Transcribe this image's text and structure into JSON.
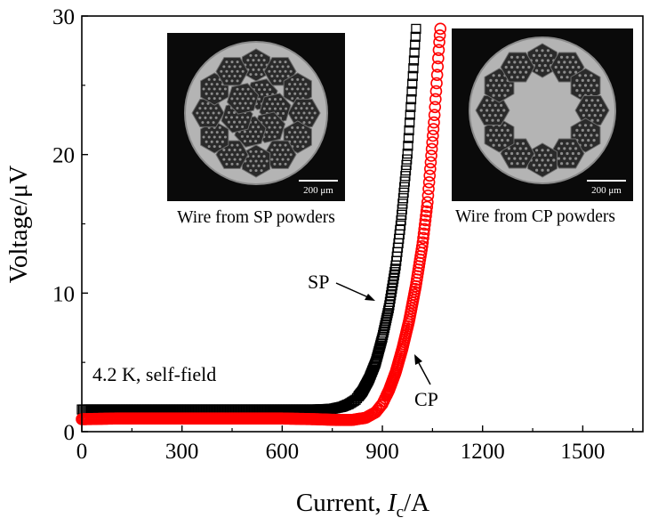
{
  "chart_data": {
    "type": "scatter",
    "xlabel_prefix": "Current, ",
    "xlabel_var": "I",
    "xlabel_sub": "c",
    "xlabel_unit": "/A",
    "ylabel": "Voltage/μV",
    "xlim": [
      0,
      1680
    ],
    "ylim": [
      0,
      30
    ],
    "xticks": [
      0,
      300,
      600,
      900,
      1200,
      1500
    ],
    "yticks": [
      0,
      10,
      20,
      30
    ],
    "condition_label": "4.2 K, self-field",
    "series": [
      {
        "name": "SP",
        "marker": "square",
        "color": "#000000",
        "points": [
          [
            0,
            1.6
          ],
          [
            100,
            1.6
          ],
          [
            200,
            1.6
          ],
          [
            300,
            1.6
          ],
          [
            400,
            1.6
          ],
          [
            500,
            1.6
          ],
          [
            600,
            1.6
          ],
          [
            700,
            1.6
          ],
          [
            750,
            1.65
          ],
          [
            780,
            1.8
          ],
          [
            800,
            2.0
          ],
          [
            820,
            2.3
          ],
          [
            840,
            2.9
          ],
          [
            860,
            3.8
          ],
          [
            880,
            5.0
          ],
          [
            900,
            6.8
          ],
          [
            920,
            9.0
          ],
          [
            940,
            12.0
          ],
          [
            955,
            15.0
          ],
          [
            965,
            17.5
          ],
          [
            975,
            20.0
          ],
          [
            985,
            23.5
          ],
          [
            995,
            27.0
          ],
          [
            1002,
            29.5
          ]
        ]
      },
      {
        "name": "CP",
        "marker": "circle",
        "color": "#ff0000",
        "points": [
          [
            0,
            0.9
          ],
          [
            100,
            0.95
          ],
          [
            200,
            0.95
          ],
          [
            300,
            0.95
          ],
          [
            400,
            0.95
          ],
          [
            500,
            0.95
          ],
          [
            600,
            0.95
          ],
          [
            700,
            0.9
          ],
          [
            760,
            0.85
          ],
          [
            810,
            0.85
          ],
          [
            850,
            1.0
          ],
          [
            880,
            1.4
          ],
          [
            900,
            2.0
          ],
          [
            920,
            3.0
          ],
          [
            940,
            4.3
          ],
          [
            960,
            6.0
          ],
          [
            980,
            8.0
          ],
          [
            1000,
            10.5
          ],
          [
            1020,
            13.5
          ],
          [
            1035,
            16.5
          ],
          [
            1045,
            19.5
          ],
          [
            1055,
            22.5
          ],
          [
            1062,
            25.0
          ],
          [
            1070,
            28.0
          ],
          [
            1075,
            29.5
          ]
        ]
      }
    ]
  },
  "insets": [
    {
      "caption": "Wire from SP powders",
      "scale_bar": "200 μm"
    },
    {
      "caption": "Wire from CP powders",
      "scale_bar": "200 μm"
    }
  ],
  "colors": {
    "sp": "#000000",
    "cp": "#ff0000",
    "inset_bg": "#0a0a0a",
    "wire": "#b4b4b4"
  }
}
